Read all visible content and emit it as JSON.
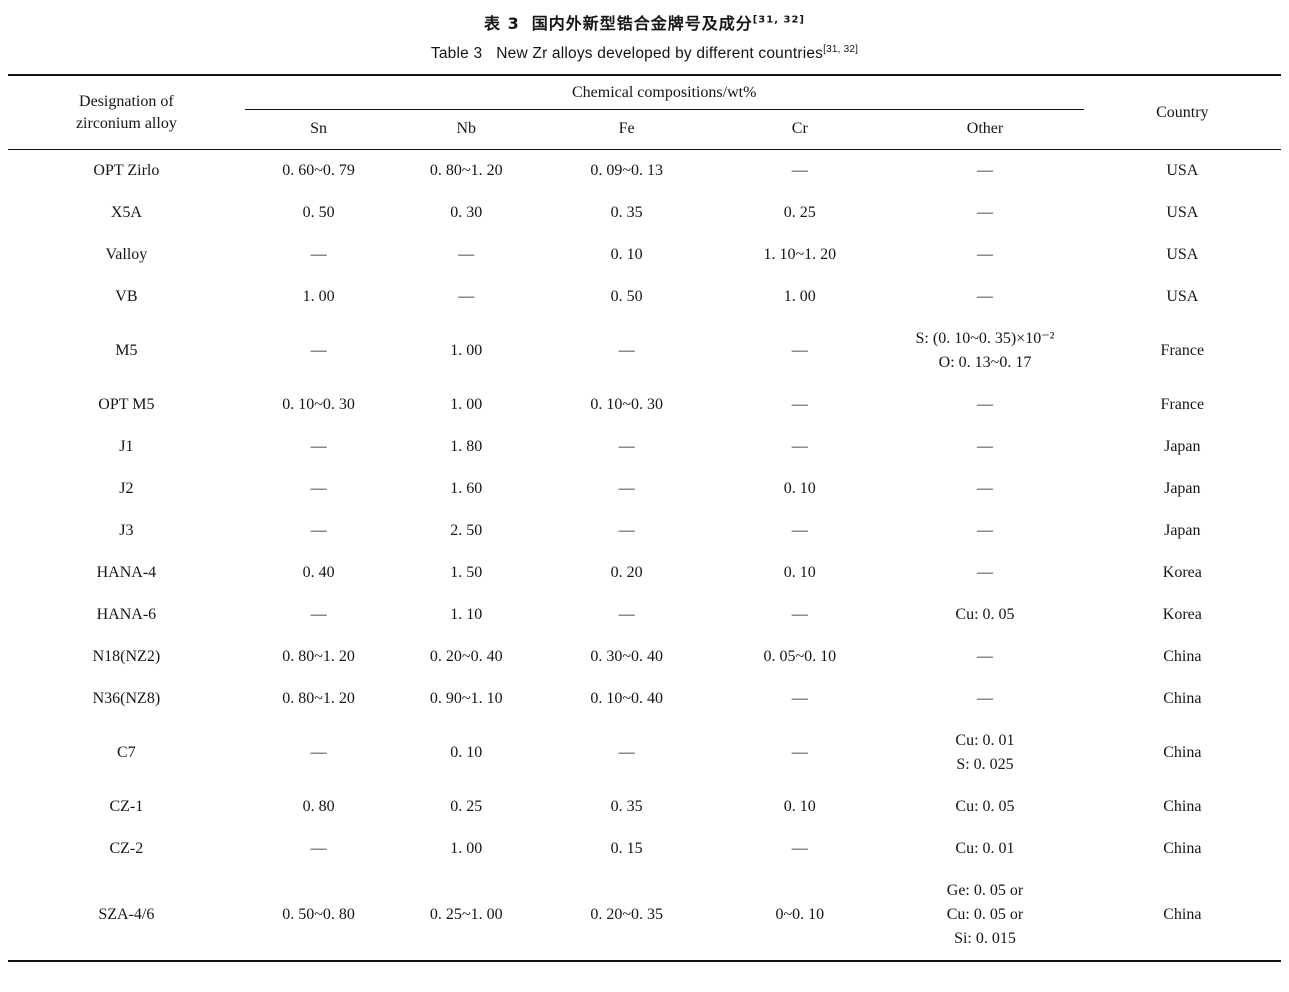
{
  "titles": {
    "chinese_label": "表 3",
    "chinese": "国内外新型锆合金牌号及成分",
    "chinese_ref": "[31, 32]",
    "english_label": "Table 3",
    "english": "New Zr alloys developed by different countries",
    "english_ref": "[31, 32]"
  },
  "table": {
    "header": {
      "designation_line1": "Designation of",
      "designation_line2": "zirconium alloy",
      "chem_group": "Chemical compositions/wt%",
      "sub_columns": [
        "Sn",
        "Nb",
        "Fe",
        "Cr",
        "Other"
      ],
      "country": "Country"
    },
    "rows": [
      {
        "designation": "OPT Zirlo",
        "sn": "0. 60~0. 79",
        "nb": "0. 80~1. 20",
        "fe": "0. 09~0. 13",
        "cr": "—",
        "other": [
          "—"
        ],
        "country": "USA"
      },
      {
        "designation": "X5A",
        "sn": "0. 50",
        "nb": "0. 30",
        "fe": "0. 35",
        "cr": "0. 25",
        "other": [
          "—"
        ],
        "country": "USA"
      },
      {
        "designation": "Valloy",
        "sn": "—",
        "nb": "—",
        "fe": "0. 10",
        "cr": "1. 10~1. 20",
        "other": [
          "—"
        ],
        "country": "USA"
      },
      {
        "designation": "VB",
        "sn": "1. 00",
        "nb": "—",
        "fe": "0. 50",
        "cr": "1. 00",
        "other": [
          "—"
        ],
        "country": "USA"
      },
      {
        "designation": "M5",
        "sn": "—",
        "nb": "1. 00",
        "fe": "—",
        "cr": "—",
        "other": [
          "S: (0. 10~0. 35)×10⁻²",
          "O: 0. 13~0. 17"
        ],
        "country": "France"
      },
      {
        "designation": "OPT M5",
        "sn": "0. 10~0. 30",
        "nb": "1. 00",
        "fe": "0. 10~0. 30",
        "cr": "—",
        "other": [
          "—"
        ],
        "country": "France"
      },
      {
        "designation": "J1",
        "sn": "—",
        "nb": "1. 80",
        "fe": "—",
        "cr": "—",
        "other": [
          "—"
        ],
        "country": "Japan"
      },
      {
        "designation": "J2",
        "sn": "—",
        "nb": "1. 60",
        "fe": "—",
        "cr": "0. 10",
        "other": [
          "—"
        ],
        "country": "Japan"
      },
      {
        "designation": "J3",
        "sn": "—",
        "nb": "2. 50",
        "fe": "—",
        "cr": "—",
        "other": [
          "—"
        ],
        "country": "Japan"
      },
      {
        "designation": "HANA-4",
        "sn": "0. 40",
        "nb": "1. 50",
        "fe": "0. 20",
        "cr": "0. 10",
        "other": [
          "—"
        ],
        "country": "Korea"
      },
      {
        "designation": "HANA-6",
        "sn": "—",
        "nb": "1. 10",
        "fe": "—",
        "cr": "—",
        "other": [
          "Cu: 0. 05"
        ],
        "country": "Korea"
      },
      {
        "designation": "N18(NZ2)",
        "sn": "0. 80~1. 20",
        "nb": "0. 20~0. 40",
        "fe": "0. 30~0. 40",
        "cr": "0. 05~0. 10",
        "other": [
          "—"
        ],
        "country": "China"
      },
      {
        "designation": "N36(NZ8)",
        "sn": "0. 80~1. 20",
        "nb": "0. 90~1. 10",
        "fe": "0. 10~0. 40",
        "cr": "—",
        "other": [
          "—"
        ],
        "country": "China"
      },
      {
        "designation": "C7",
        "sn": "—",
        "nb": "0. 10",
        "fe": "—",
        "cr": "—",
        "other": [
          "Cu: 0. 01",
          "S: 0. 025"
        ],
        "country": "China"
      },
      {
        "designation": "CZ-1",
        "sn": "0. 80",
        "nb": "0. 25",
        "fe": "0. 35",
        "cr": "0. 10",
        "other": [
          "Cu: 0. 05"
        ],
        "country": "China"
      },
      {
        "designation": "CZ-2",
        "sn": "—",
        "nb": "1. 00",
        "fe": "0. 15",
        "cr": "—",
        "other": [
          "Cu: 0. 01"
        ],
        "country": "China"
      },
      {
        "designation": "SZA-4/6",
        "sn": "0. 50~0. 80",
        "nb": "0. 25~1. 00",
        "fe": "0. 20~0. 35",
        "cr": "0~0. 10",
        "other": [
          "Ge: 0. 05 or",
          "Cu: 0. 05 or",
          "Si: 0. 015"
        ],
        "country": "China"
      }
    ]
  }
}
